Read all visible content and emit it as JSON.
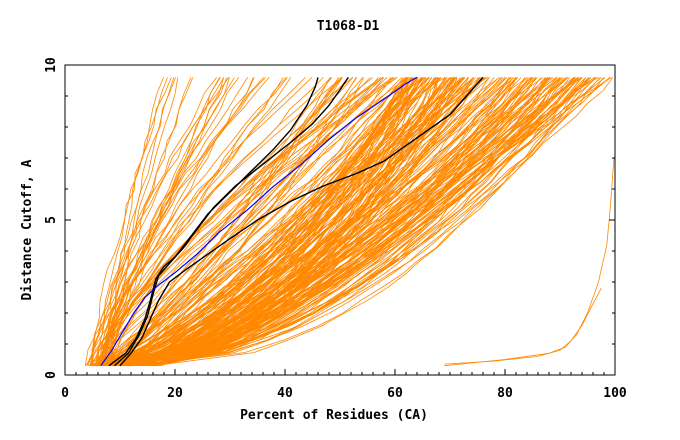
{
  "chart_data": {
    "type": "line",
    "title": "T1068-D1",
    "xlabel": "Percent of Residues (CA)",
    "ylabel": "Distance Cutoff, A",
    "xlim": [
      0,
      100
    ],
    "ylim": [
      0,
      10
    ],
    "x_ticks": [
      0,
      20,
      40,
      60,
      80,
      100
    ],
    "y_ticks": [
      0,
      5,
      10
    ],
    "x_tick_labels": [
      "0",
      "20",
      "40",
      "60",
      "80",
      "100"
    ],
    "y_tick_labels": [
      "0",
      "5",
      "10"
    ],
    "grid": false,
    "legend": "none",
    "colors": {
      "others": "#ff8800",
      "highlight_black": "#000000",
      "highlight_blue": "#0000ff"
    },
    "series": [
      {
        "color": "#000000",
        "x": [
          8,
          11,
          13,
          14.5,
          15.5,
          16.5,
          18,
          20,
          23,
          26,
          30,
          34,
          38,
          41,
          44,
          45.5,
          46
        ],
        "y": [
          0.3,
          0.7,
          1.2,
          1.8,
          2.4,
          3.1,
          3.5,
          3.8,
          4.5,
          5.2,
          5.9,
          6.6,
          7.3,
          7.9,
          8.7,
          9.3,
          9.6
        ]
      },
      {
        "color": "#000000",
        "x": [
          9,
          11.5,
          13.5,
          15,
          16,
          17,
          19,
          21.5,
          24,
          27,
          31,
          36,
          41,
          45,
          48,
          50,
          51.5
        ],
        "y": [
          0.3,
          0.7,
          1.3,
          1.9,
          2.6,
          3.2,
          3.6,
          4.1,
          4.7,
          5.4,
          6.1,
          6.8,
          7.5,
          8.1,
          8.7,
          9.2,
          9.6
        ]
      },
      {
        "color": "#000000",
        "x": [
          10,
          12,
          14,
          15.5,
          17,
          19,
          22,
          26,
          30,
          35,
          41,
          47,
          53,
          58,
          62,
          66,
          70,
          73,
          76
        ],
        "y": [
          0.3,
          0.7,
          1.2,
          1.8,
          2.4,
          3.0,
          3.4,
          3.9,
          4.4,
          5.0,
          5.6,
          6.1,
          6.5,
          6.9,
          7.4,
          7.9,
          8.4,
          9.0,
          9.6
        ]
      },
      {
        "color": "#0000ff",
        "x": [
          6.5,
          8.5,
          10.5,
          12.5,
          14.5,
          17,
          20,
          24,
          28,
          33,
          38,
          43,
          48,
          53,
          58,
          62,
          64
        ],
        "y": [
          0.3,
          0.8,
          1.4,
          2.0,
          2.5,
          2.9,
          3.3,
          3.9,
          4.6,
          5.3,
          6.1,
          6.8,
          7.6,
          8.3,
          8.9,
          9.4,
          9.6
        ]
      }
    ]
  }
}
